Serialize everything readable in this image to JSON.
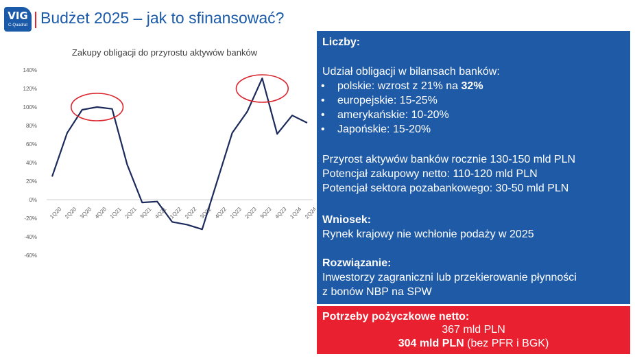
{
  "header": {
    "logo_text": "VIG",
    "logo_subtext": "C-Quadrat",
    "title": "Budżet 2025 – jak to sfinansować?"
  },
  "colors": {
    "blue": "#1f5aa6",
    "red": "#e8202f",
    "line": "#1b2a5a",
    "circle": "#d9262f"
  },
  "chart_data": {
    "type": "line",
    "title": "Zakupy obligacji do przyrostu aktywów banków",
    "categories": [
      "1Q20",
      "2Q20",
      "3Q20",
      "4Q20",
      "1Q21",
      "2Q21",
      "3Q21",
      "4Q21",
      "1Q22",
      "2Q22",
      "3Q22",
      "4Q22",
      "1Q23",
      "2Q23",
      "3Q23",
      "4Q23",
      "1Q24",
      "2Q24"
    ],
    "values": [
      25,
      72,
      97,
      100,
      98,
      38,
      -3,
      -2,
      -24,
      -27,
      -32,
      20,
      72,
      95,
      131,
      71,
      91,
      83
    ],
    "yticks": [
      "140%",
      "120%",
      "100%",
      "80%",
      "60%",
      "40%",
      "20%",
      "0%",
      "-20%",
      "-40%",
      "-60%"
    ],
    "ylim": [
      -60,
      140
    ],
    "unit": "%",
    "grid": false,
    "annotations": [
      {
        "type": "ellipse",
        "around_categories": [
          "3Q20",
          "1Q21"
        ],
        "around_value": 100
      },
      {
        "type": "ellipse",
        "around_categories": [
          "2Q23",
          "4Q23"
        ],
        "around_value": 120
      }
    ]
  },
  "panel": {
    "heading": "Liczby:",
    "share_intro": "Udział obligacji w bilansach banków:",
    "bullet_symbol": "•",
    "bullets": [
      {
        "text": "polskie: wzrost z 21% na ",
        "bold": "32%"
      },
      {
        "text": "europejskie: 15-25%"
      },
      {
        "text": "amerykańskie: 10-20%"
      },
      {
        "text": "Japońskie: 15-20%"
      }
    ],
    "facts": [
      "Przyrost aktywów banków rocznie 130-150 mld PLN",
      "Potencjał zakupowy netto: 110-120 mld PLN",
      "Potencjał sektora pozabankowego: 30-50 mld PLN"
    ],
    "conclusion_heading": "Wniosek:",
    "conclusion_text": "Rynek krajowy nie wchłonie podaży w 2025",
    "solution_heading": "Rozwiązanie:",
    "solution_lines": [
      "Inwestorzy zagraniczni lub przekierowanie płynności",
      "z bonów NBP na SPW"
    ]
  },
  "needs": {
    "heading": "Potrzeby pożyczkowe netto:",
    "line1": "367 mld PLN",
    "line2_bold": "304 mld PLN",
    "line2_rest": " (bez PFR i BGK)"
  }
}
